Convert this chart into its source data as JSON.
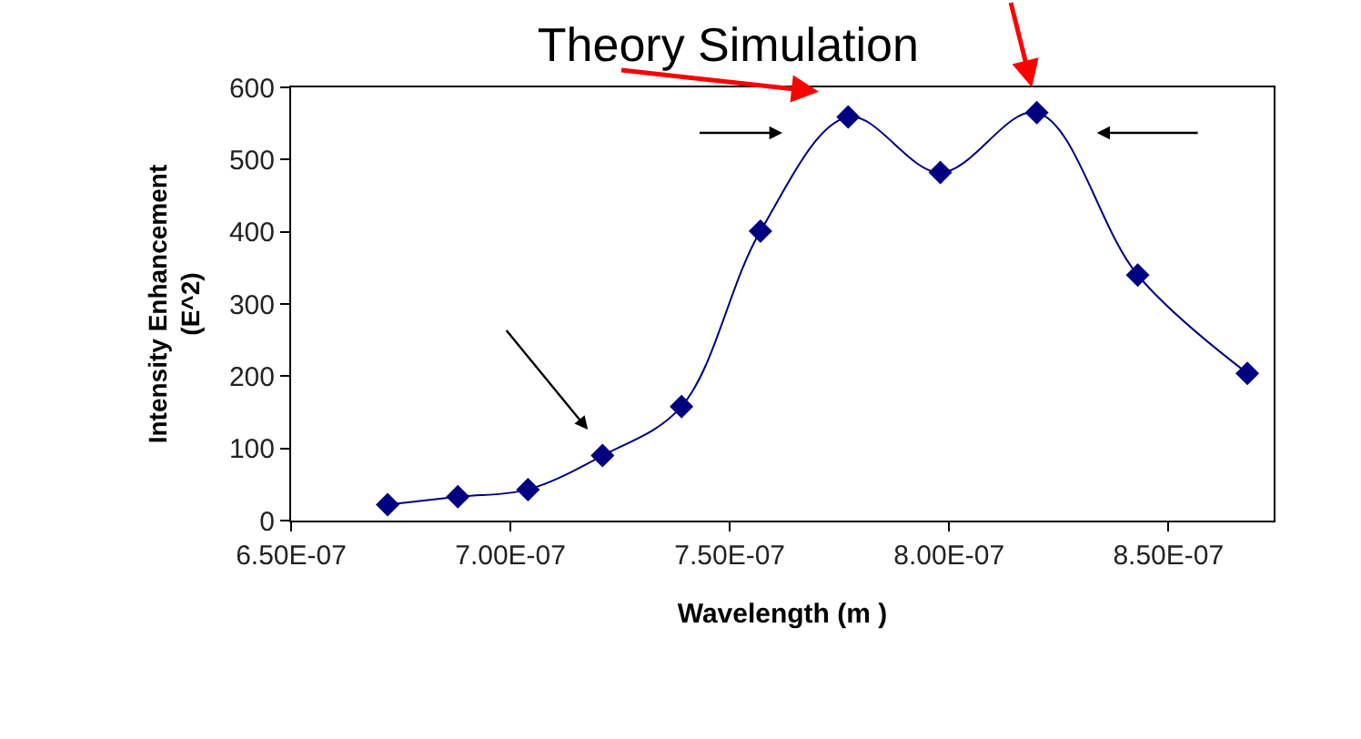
{
  "chart_data": {
    "type": "line",
    "title": "Theory Simulation",
    "xlabel": "Wavelength (m )",
    "ylabel": "Intensity Enhancement\n(E^2)",
    "x": [
      6.72e-07,
      6.88e-07,
      7.04e-07,
      7.21e-07,
      7.39e-07,
      7.57e-07,
      7.77e-07,
      7.98e-07,
      8.2e-07,
      8.43e-07,
      8.68e-07
    ],
    "series": [
      {
        "color": "#000080",
        "values": [
          22,
          33,
          43,
          90,
          158,
          401,
          559,
          482,
          565,
          340,
          204
        ]
      }
    ],
    "xlim": [
      6.5e-07,
      8.74e-07
    ],
    "xticks": [
      {
        "value": 6.5e-07,
        "label": "6.50E-07"
      },
      {
        "value": 7e-07,
        "label": "7.00E-07"
      },
      {
        "value": 7.5e-07,
        "label": "7.50E-07"
      },
      {
        "value": 8e-07,
        "label": "8.00E-07"
      },
      {
        "value": 8.5e-07,
        "label": "8.50E-07"
      }
    ],
    "ylim": [
      0,
      600
    ],
    "yticks": [
      0,
      100,
      200,
      300,
      400,
      500,
      600
    ],
    "marker": "diamond",
    "line_style": "solid"
  }
}
